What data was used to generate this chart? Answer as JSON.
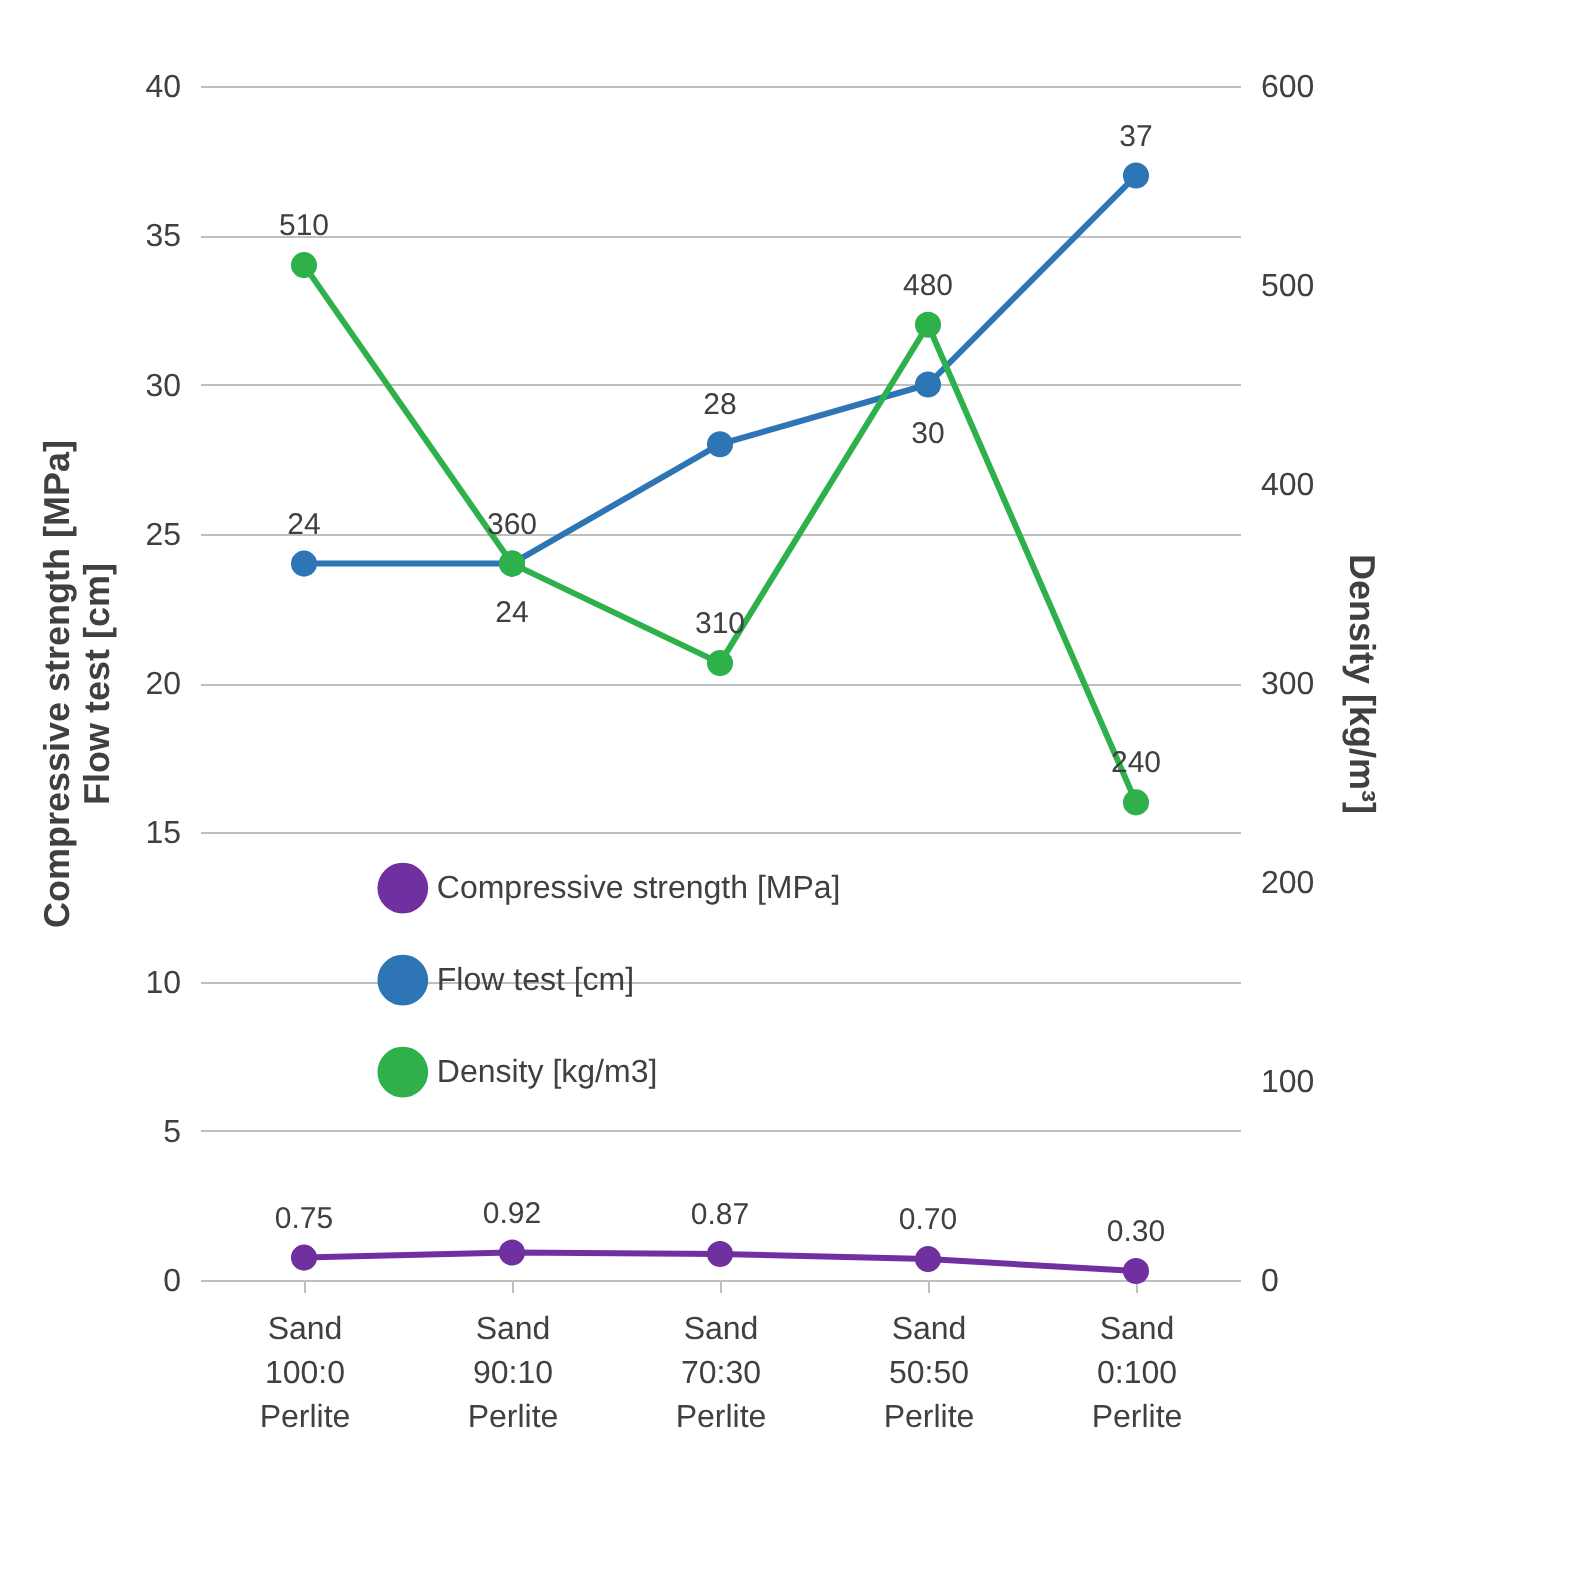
{
  "chart_data": {
    "type": "line",
    "categories": [
      "Sand 100:0 Perlite",
      "Sand 90:10 Perlite",
      "Sand 70:30 Perlite",
      "Sand 50:50 Perlite",
      "Sand 0:100 Perlite"
    ],
    "ylabel": "Compressive strength [MPa]\nFlow test [cm]",
    "y2label": "Density [kg/m³]",
    "ylim": [
      0,
      40
    ],
    "yticks": [
      0,
      5,
      10,
      15,
      20,
      25,
      30,
      35,
      40
    ],
    "y2lim": [
      0,
      600
    ],
    "y2ticks": [
      0,
      100,
      200,
      300,
      400,
      500,
      600
    ],
    "series": [
      {
        "name": "Compressive strength [MPa]",
        "color": "#7030a0",
        "values": [
          0.75,
          0.92,
          0.87,
          0.7,
          0.3
        ],
        "value_labels": [
          "0.75",
          "0.92",
          "0.87",
          "0.70",
          "0.30"
        ]
      },
      {
        "name": "Flow test [cm]",
        "color": "#2e75b6",
        "values": [
          24,
          24,
          28,
          30,
          37
        ]
      },
      {
        "name": "Density [kg/m3]",
        "color": "#2eb04a",
        "values": [
          510,
          360,
          310,
          480,
          240
        ],
        "axis": "y2"
      }
    ],
    "data_labels": true,
    "grid": "y",
    "legend": "center",
    "marker": "circle",
    "line_style": "solid"
  }
}
